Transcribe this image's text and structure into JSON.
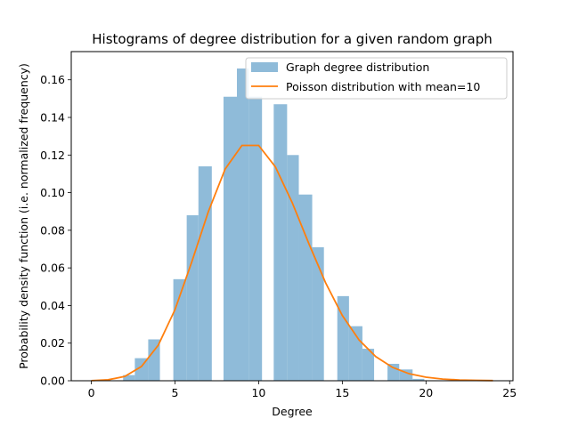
{
  "chart_data": {
    "type": "bar",
    "title": "Histograms of degree distribution for a given random graph",
    "xlabel": "Degree",
    "ylabel": "Probability density function (i.e. normalized frequency)",
    "xlim": [
      -1.2,
      25.2
    ],
    "ylim": [
      0,
      0.175
    ],
    "xticks": [
      0,
      5,
      10,
      15,
      20,
      25
    ],
    "yticks": [
      0.0,
      0.02,
      0.04,
      0.06,
      0.08,
      0.1,
      0.12,
      0.14,
      0.16
    ],
    "grid": false,
    "legend_position": "top-right",
    "series": [
      {
        "name": "Graph degree distribution",
        "kind": "histogram",
        "color": "#8fbbd9",
        "bins": [
          {
            "x0": 1.9,
            "x1": 2.6,
            "value": 0.003
          },
          {
            "x0": 2.6,
            "x1": 3.4,
            "value": 0.012
          },
          {
            "x0": 3.4,
            "x1": 4.1,
            "value": 0.022
          },
          {
            "x0": 4.9,
            "x1": 5.7,
            "value": 0.054
          },
          {
            "x0": 5.7,
            "x1": 6.4,
            "value": 0.088
          },
          {
            "x0": 6.4,
            "x1": 7.2,
            "value": 0.114
          },
          {
            "x0": 7.9,
            "x1": 8.7,
            "value": 0.151
          },
          {
            "x0": 8.7,
            "x1": 9.4,
            "value": 0.166
          },
          {
            "x0": 9.4,
            "x1": 10.2,
            "value": 0.151
          },
          {
            "x0": 10.9,
            "x1": 11.7,
            "value": 0.147
          },
          {
            "x0": 11.7,
            "x1": 12.4,
            "value": 0.12
          },
          {
            "x0": 12.4,
            "x1": 13.2,
            "value": 0.099
          },
          {
            "x0": 13.2,
            "x1": 13.9,
            "value": 0.071
          },
          {
            "x0": 14.7,
            "x1": 15.4,
            "value": 0.045
          },
          {
            "x0": 15.4,
            "x1": 16.2,
            "value": 0.029
          },
          {
            "x0": 16.2,
            "x1": 16.9,
            "value": 0.017
          },
          {
            "x0": 17.7,
            "x1": 18.4,
            "value": 0.009
          },
          {
            "x0": 18.4,
            "x1": 19.2,
            "value": 0.006
          },
          {
            "x0": 19.2,
            "x1": 19.9,
            "value": 0.001
          }
        ]
      },
      {
        "name": "Poisson distribution with mean=10",
        "kind": "line",
        "color": "#ff7f0e",
        "x": [
          0,
          1,
          2,
          3,
          4,
          5,
          6,
          7,
          8,
          9,
          10,
          11,
          12,
          13,
          14,
          15,
          16,
          17,
          18,
          19,
          20,
          21,
          22,
          23,
          24
        ],
        "values": [
          5e-05,
          0.0005,
          0.0023,
          0.0076,
          0.0189,
          0.0378,
          0.0631,
          0.0901,
          0.1126,
          0.1251,
          0.1251,
          0.1137,
          0.0948,
          0.0729,
          0.0521,
          0.0347,
          0.0217,
          0.0128,
          0.0071,
          0.0037,
          0.0019,
          0.0009,
          0.0004,
          0.0002,
          0.0001
        ]
      }
    ]
  }
}
